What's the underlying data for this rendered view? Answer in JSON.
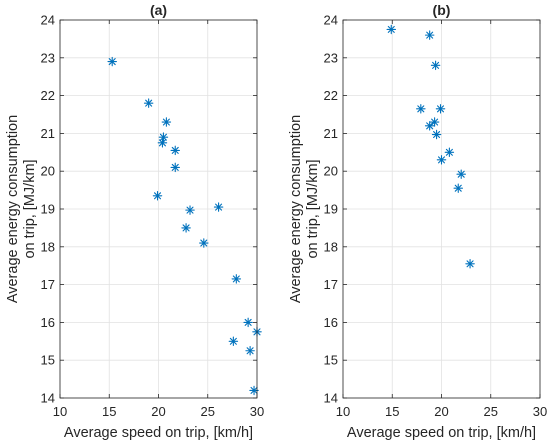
{
  "chart_data": [
    {
      "type": "scatter",
      "title": "(a)",
      "xlabel": "Average speed on trip, [km/h]",
      "ylabel_lines": [
        "Average energy consumption",
        "on trip, [MJ/km]"
      ],
      "xlim": [
        10,
        30
      ],
      "ylim": [
        14,
        24
      ],
      "xticks": [
        "10",
        "15",
        "20",
        "25",
        "30"
      ],
      "yticks": [
        "14",
        "15",
        "16",
        "17",
        "18",
        "19",
        "20",
        "21",
        "22",
        "23",
        "24"
      ],
      "grid": true,
      "marker": "asterisk",
      "color": "#0072BD",
      "points": [
        [
          15.3,
          22.9
        ],
        [
          19.0,
          21.8
        ],
        [
          20.8,
          21.3
        ],
        [
          20.5,
          20.9
        ],
        [
          20.4,
          20.75
        ],
        [
          21.7,
          20.55
        ],
        [
          21.7,
          20.1
        ],
        [
          19.9,
          19.35
        ],
        [
          23.2,
          18.97
        ],
        [
          26.1,
          19.05
        ],
        [
          22.8,
          18.5
        ],
        [
          24.6,
          18.1
        ],
        [
          27.9,
          17.15
        ],
        [
          29.1,
          16.0
        ],
        [
          30.0,
          15.75
        ],
        [
          27.6,
          15.5
        ],
        [
          29.3,
          15.25
        ],
        [
          29.7,
          14.2
        ]
      ]
    },
    {
      "type": "scatter",
      "title": "(b)",
      "xlabel": "Average speed on trip, [km/h]",
      "ylabel_lines": [
        "Average energy consumption",
        "on trip, [MJ/km]"
      ],
      "xlim": [
        10,
        30
      ],
      "ylim": [
        14,
        24
      ],
      "xticks": [
        "10",
        "15",
        "20",
        "25",
        "30"
      ],
      "yticks": [
        "14",
        "15",
        "16",
        "17",
        "18",
        "19",
        "20",
        "21",
        "22",
        "23",
        "24"
      ],
      "grid": true,
      "marker": "asterisk",
      "color": "#0072BD",
      "points": [
        [
          14.9,
          23.75
        ],
        [
          18.8,
          23.6
        ],
        [
          19.4,
          22.8
        ],
        [
          17.9,
          21.65
        ],
        [
          19.9,
          21.65
        ],
        [
          19.3,
          21.3
        ],
        [
          18.8,
          21.2
        ],
        [
          19.5,
          20.97
        ],
        [
          20.8,
          20.5
        ],
        [
          20.0,
          20.3
        ],
        [
          22.0,
          19.92
        ],
        [
          21.7,
          19.55
        ],
        [
          22.9,
          17.55
        ]
      ]
    }
  ]
}
